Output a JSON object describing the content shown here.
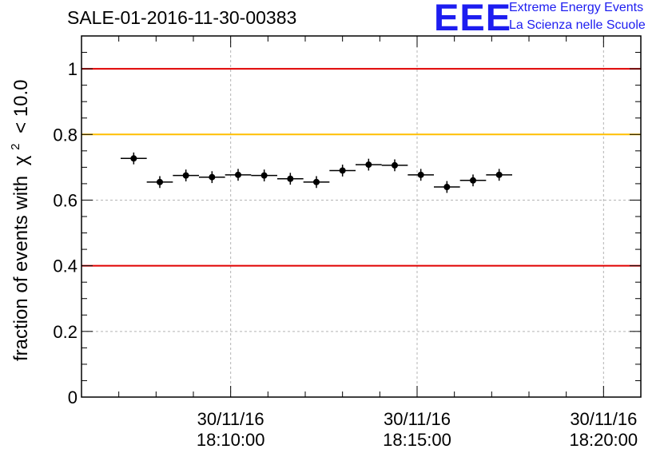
{
  "title": "SALE-01-2016-11-30-00383",
  "logo": {
    "mark": "EEE",
    "line1": "Extreme Energy Events",
    "line2": "La Scienza nelle Scuole"
  },
  "chart_data": {
    "type": "scatter",
    "title": "SALE-01-2016-11-30-00383",
    "ylabel_prefix": "fraction of events with",
    "ylabel_symbol": "χ",
    "ylabel_exp": "2",
    "ylabel_suffix": "< 10.0",
    "ylim": [
      0,
      1.1
    ],
    "y_ticks": [
      0,
      0.2,
      0.4,
      0.6,
      0.8,
      1
    ],
    "y_tick_labels": [
      "0",
      "0.2",
      "0.4",
      "0.6",
      "0.8",
      "1"
    ],
    "xlim": [
      "2016-11-30 18:06:00",
      "2016-11-30 18:21:00"
    ],
    "x_ticks": [
      {
        "date": "30/11/16",
        "time": "18:10:00",
        "t": "2016-11-30 18:10:00"
      },
      {
        "date": "30/11/16",
        "time": "18:15:00",
        "t": "2016-11-30 18:15:00"
      },
      {
        "date": "30/11/16",
        "time": "18:20:00",
        "t": "2016-11-30 18:20:00"
      }
    ],
    "grid": true,
    "reference_lines": [
      {
        "y": 1.0,
        "color": "#e00000"
      },
      {
        "y": 0.8,
        "color": "#ffbf00"
      },
      {
        "y": 0.4,
        "color": "#e00000"
      }
    ],
    "bin_width_seconds": 42,
    "points": [
      {
        "t": "2016-11-30 18:07:24",
        "y": 0.727,
        "err": 0.018
      },
      {
        "t": "2016-11-30 18:08:06",
        "y": 0.655,
        "err": 0.018
      },
      {
        "t": "2016-11-30 18:08:48",
        "y": 0.675,
        "err": 0.018
      },
      {
        "t": "2016-11-30 18:09:30",
        "y": 0.67,
        "err": 0.018
      },
      {
        "t": "2016-11-30 18:10:12",
        "y": 0.677,
        "err": 0.018
      },
      {
        "t": "2016-11-30 18:10:54",
        "y": 0.675,
        "err": 0.018
      },
      {
        "t": "2016-11-30 18:11:36",
        "y": 0.665,
        "err": 0.018
      },
      {
        "t": "2016-11-30 18:12:18",
        "y": 0.655,
        "err": 0.018
      },
      {
        "t": "2016-11-30 18:13:00",
        "y": 0.69,
        "err": 0.018
      },
      {
        "t": "2016-11-30 18:13:42",
        "y": 0.708,
        "err": 0.018
      },
      {
        "t": "2016-11-30 18:14:24",
        "y": 0.706,
        "err": 0.018
      },
      {
        "t": "2016-11-30 18:15:06",
        "y": 0.677,
        "err": 0.018
      },
      {
        "t": "2016-11-30 18:15:48",
        "y": 0.64,
        "err": 0.018
      },
      {
        "t": "2016-11-30 18:16:30",
        "y": 0.66,
        "err": 0.018
      },
      {
        "t": "2016-11-30 18:17:12",
        "y": 0.677,
        "err": 0.018
      }
    ],
    "colors": {
      "markers": "#000000",
      "axes": "#000000",
      "grid": "#b4b4b4"
    }
  }
}
